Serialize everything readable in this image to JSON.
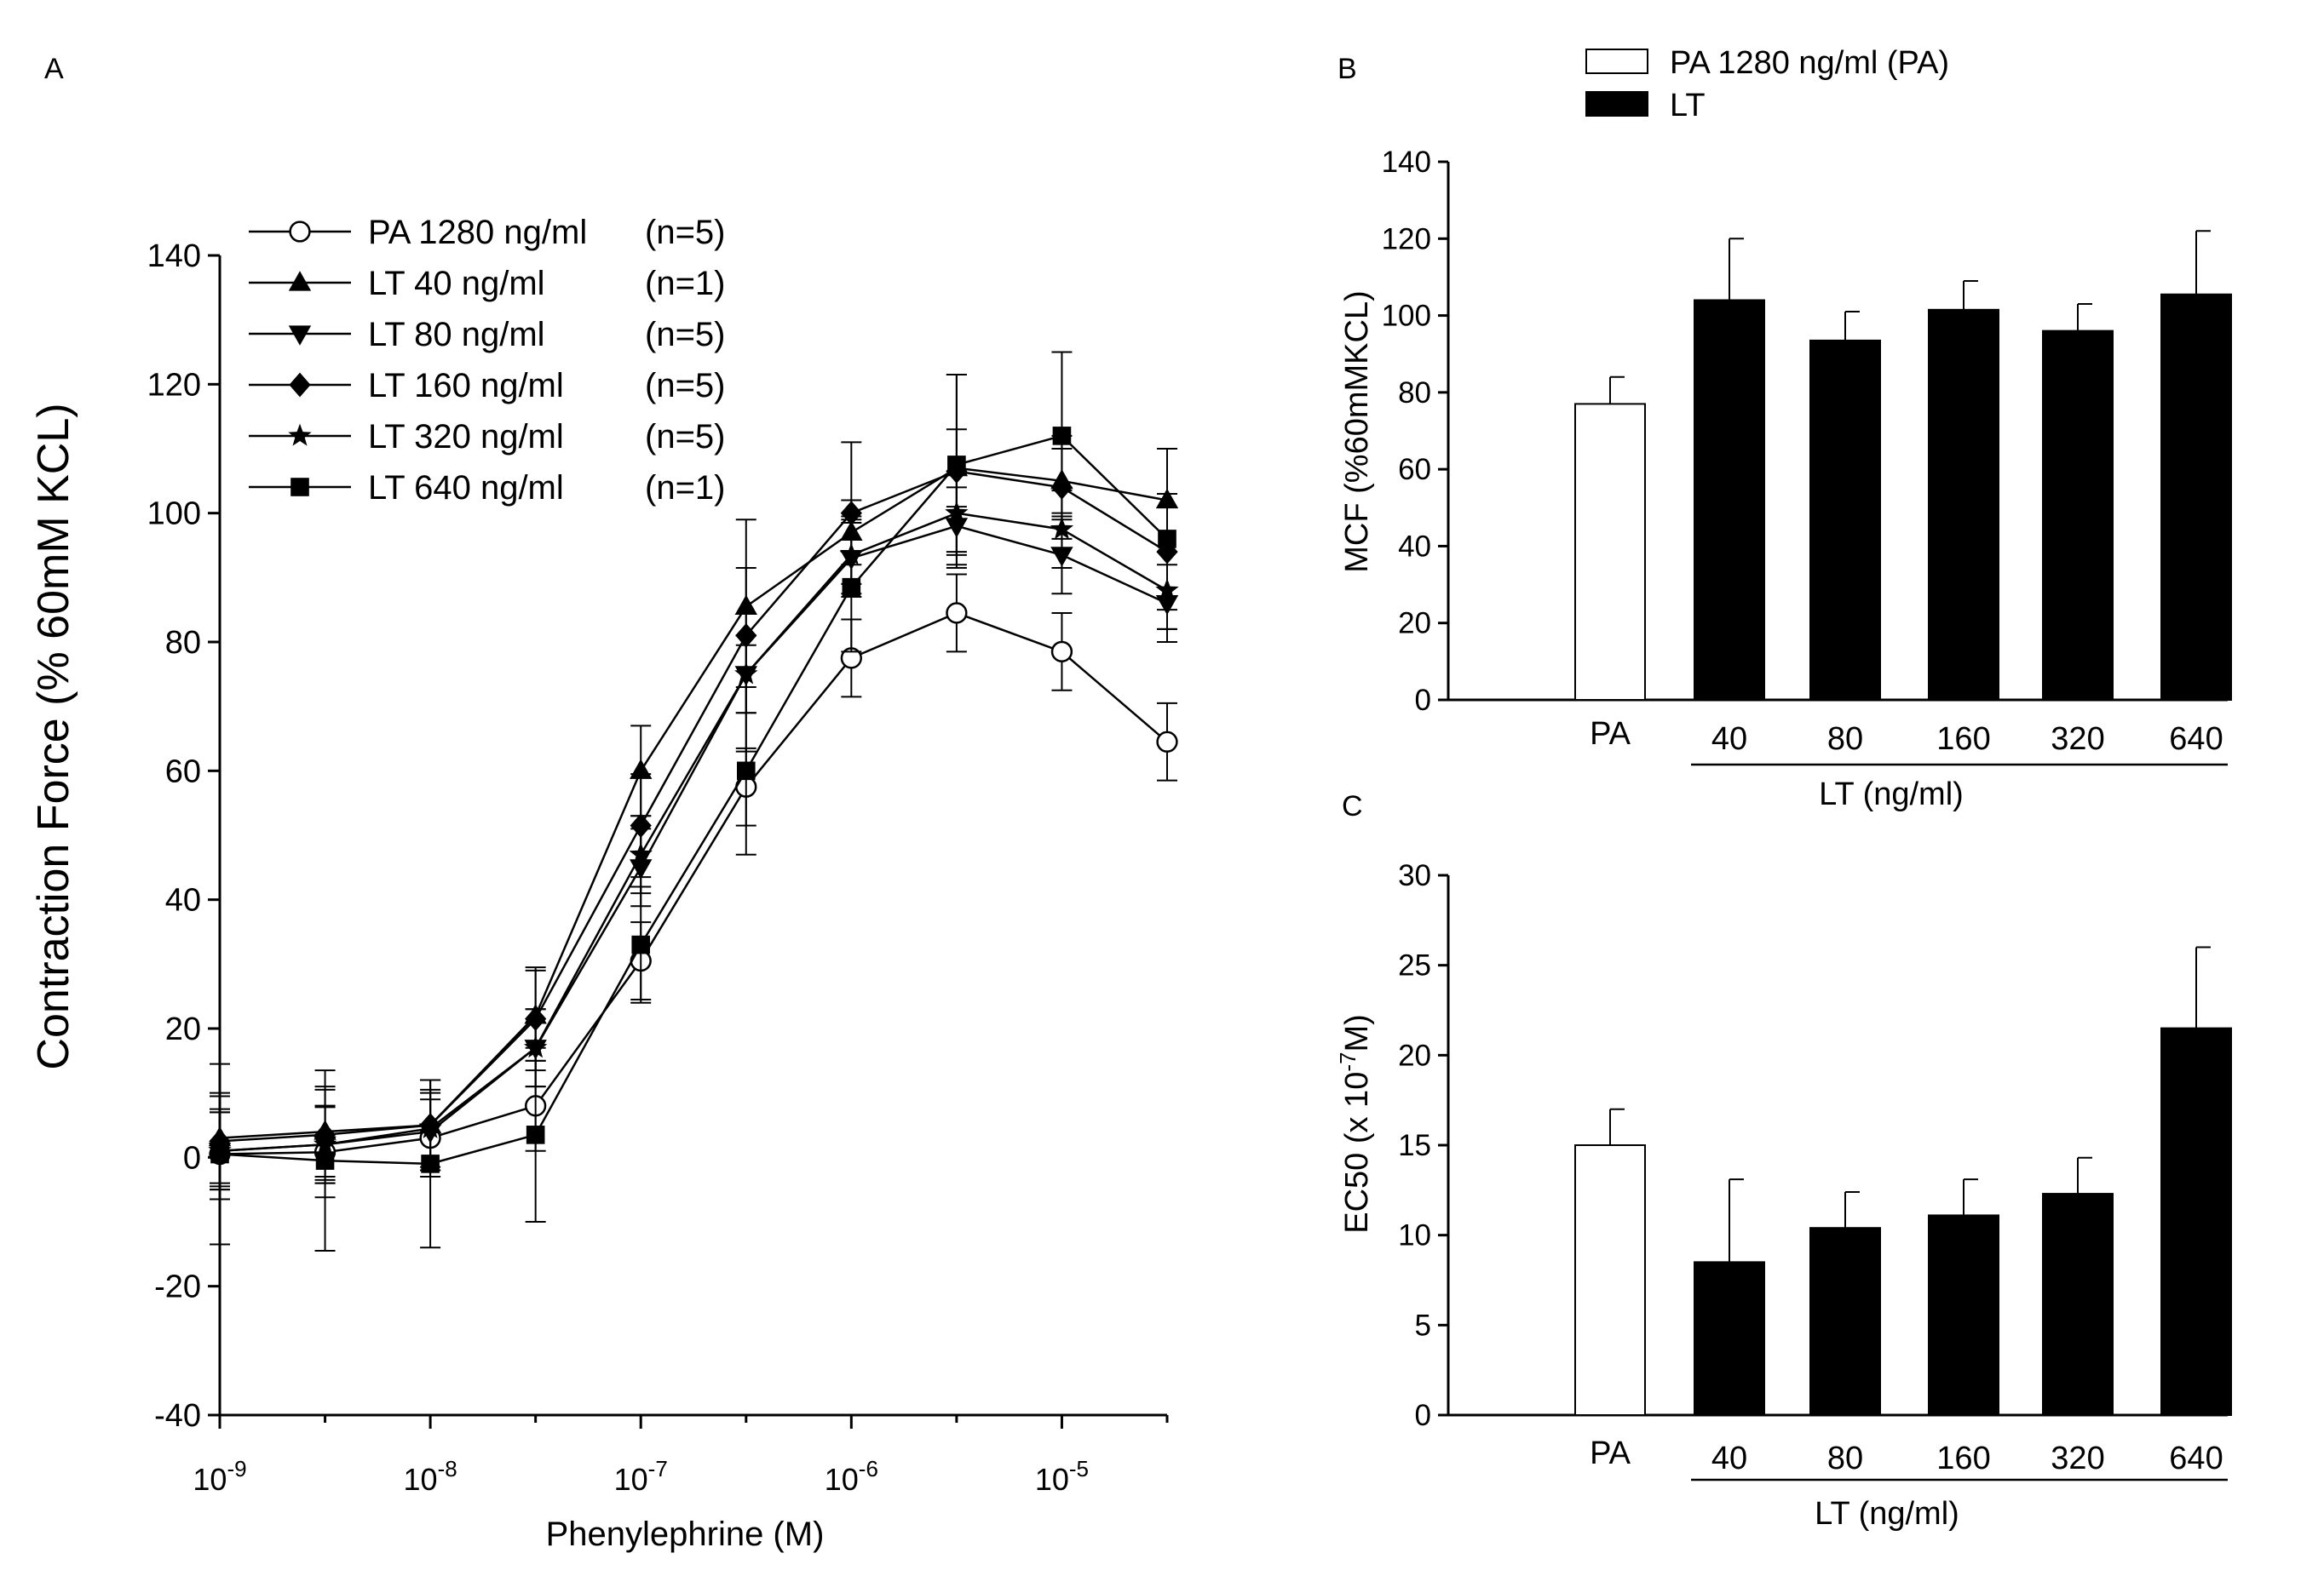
{
  "chart_data": [
    {
      "panel": "A",
      "type": "line",
      "xlabel": "Phenylephrine (M)",
      "ylabel": "Contraction Force (% 60mM KCL)",
      "ylim": [
        -40,
        140
      ],
      "yticks": [
        -40,
        -20,
        0,
        20,
        40,
        60,
        80,
        100,
        120,
        140
      ],
      "xscale": "log",
      "x_log10": [
        -9,
        -8.5,
        -8,
        -7.5,
        -7,
        -6.5,
        -6,
        -5.5,
        -5,
        -4.5
      ],
      "xticks": [
        {
          "base": "10",
          "exp": "-9",
          "log10": -9
        },
        {
          "base": "10",
          "exp": "-8",
          "log10": -8
        },
        {
          "base": "10",
          "exp": "-7",
          "log10": -7
        },
        {
          "base": "10",
          "exp": "-6",
          "log10": -6
        },
        {
          "base": "10",
          "exp": "-5",
          "log10": -5
        }
      ],
      "legend_position": "top-left",
      "series": [
        {
          "name": "PA 1280 ng/ml",
          "n_label": "(n=5)",
          "marker": "circle-open",
          "values": [
            0.5,
            0.8,
            3,
            8,
            30.5,
            57.5,
            77.5,
            84.5,
            78.5,
            64.5
          ],
          "errors": [
            7,
            7,
            6,
            7,
            6,
            6,
            6,
            6,
            6,
            6
          ]
        },
        {
          "name": "LT 40 ng/ml",
          "n_label": "(n=1)",
          "marker": "triangle-up",
          "values": [
            3,
            4,
            5,
            22,
            60,
            85.5,
            97,
            107,
            105,
            102
          ],
          "errors": [
            7,
            7,
            7,
            7,
            7,
            6,
            5,
            6,
            5,
            8
          ]
        },
        {
          "name": "LT 80 ng/ml",
          "n_label": "(n=5)",
          "marker": "triangle-down",
          "values": [
            1,
            2,
            4,
            17,
            45,
            75,
            93,
            98,
            93.5,
            86
          ],
          "errors": [
            6,
            6,
            6,
            6,
            6,
            6,
            6,
            6,
            6,
            6
          ]
        },
        {
          "name": "LT 160 ng/ml",
          "n_label": "(n=5)",
          "marker": "diamond",
          "values": [
            2.5,
            3.5,
            5,
            21.5,
            51.5,
            81,
            100,
            106.5,
            104,
            94
          ],
          "errors": [
            7,
            7,
            7,
            8,
            8,
            18,
            11,
            15,
            8,
            9
          ]
        },
        {
          "name": "LT 320 ng/ml",
          "n_label": "(n=5)",
          "marker": "star",
          "values": [
            1,
            2,
            4.5,
            17,
            47,
            75,
            93.5,
            100,
            97.5,
            88
          ],
          "errors": [
            6,
            6,
            6,
            6,
            6,
            6,
            6,
            6,
            6,
            6
          ]
        },
        {
          "name": "LT 640 ng/ml",
          "n_label": "(n=1)",
          "marker": "square",
          "values": [
            0.5,
            -0.5,
            -1,
            3.5,
            33,
            60,
            88.5,
            107.5,
            112,
            96
          ],
          "errors": [
            14,
            14,
            13,
            13.5,
            9,
            13,
            10,
            14,
            13,
            14
          ]
        }
      ]
    },
    {
      "panel": "B",
      "type": "bar",
      "ylabel": "MCF (%60mMKCL)",
      "ylim": [
        0,
        140
      ],
      "yticks": [
        0,
        20,
        40,
        60,
        80,
        100,
        120,
        140
      ],
      "categories": [
        "PA",
        "40",
        "80",
        "160",
        "320",
        "640"
      ],
      "values": [
        77,
        104,
        93.5,
        101.5,
        96,
        105.5
      ],
      "errors": [
        7,
        16,
        7.5,
        7.5,
        7,
        16.5
      ],
      "fills": [
        "open",
        "filled",
        "filled",
        "filled",
        "filled",
        "filled"
      ],
      "group_label": "LT (ng/ml)",
      "legend_position": "top",
      "legend": [
        {
          "label": "PA 1280 ng/ml (PA)",
          "fill": "open"
        },
        {
          "label": "LT",
          "fill": "filled"
        }
      ]
    },
    {
      "panel": "C",
      "type": "bar",
      "ylabel_main": "EC50 (x 10",
      "ylabel_exp": "-7",
      "ylabel_tail": "M)",
      "ylim": [
        0,
        30
      ],
      "yticks": [
        0,
        5,
        10,
        15,
        20,
        25,
        30
      ],
      "categories": [
        "PA",
        "40",
        "80",
        "160",
        "320",
        "640"
      ],
      "values": [
        15,
        8.5,
        10.4,
        11.1,
        12.3,
        21.5
      ],
      "errors": [
        2,
        4.6,
        2,
        2,
        2,
        4.5
      ],
      "fills": [
        "open",
        "filled",
        "filled",
        "filled",
        "filled",
        "filled"
      ],
      "group_label": "LT (ng/ml)"
    }
  ],
  "colors": {
    "ink": "#000000",
    "background": "#ffffff"
  }
}
